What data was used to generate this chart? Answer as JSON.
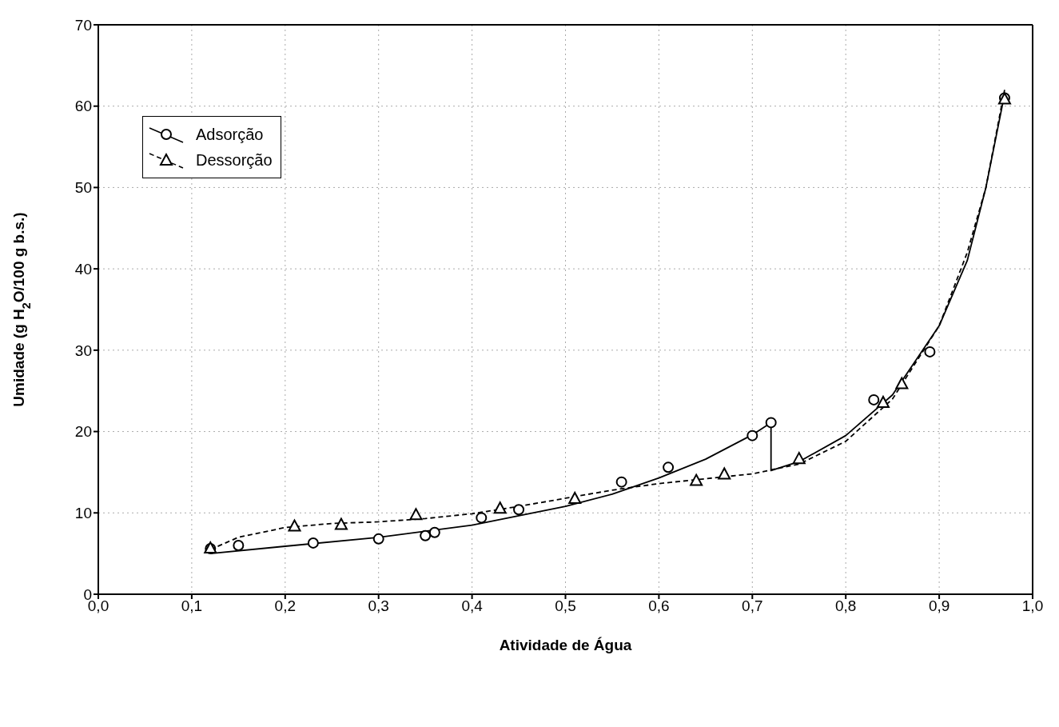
{
  "chart_data": {
    "type": "scatter",
    "xlabel": "Atividade de Água",
    "ylabel": "Umidade (g H$_{2}$O/100 g b.s.)",
    "xlim": [
      0,
      1
    ],
    "ylim": [
      0,
      70
    ],
    "xticks": [
      {
        "value": 0,
        "label": "0,0"
      },
      {
        "value": 0.1,
        "label": "0,1"
      },
      {
        "value": 0.2,
        "label": "0,2"
      },
      {
        "value": 0.3,
        "label": "0,3"
      },
      {
        "value": 0.4,
        "label": "0,4"
      },
      {
        "value": 0.5,
        "label": "0,5"
      },
      {
        "value": 0.6,
        "label": "0,6"
      },
      {
        "value": 0.7,
        "label": "0,7"
      },
      {
        "value": 0.8,
        "label": "0,8"
      },
      {
        "value": 0.9,
        "label": "0,9"
      },
      {
        "value": 1,
        "label": "1,0"
      }
    ],
    "yticks": [
      0,
      10,
      20,
      30,
      40,
      50,
      60,
      70
    ],
    "grid": true,
    "legend": "top left",
    "series": [
      {
        "name": "Adsorção",
        "marker": "circle",
        "line_style": "solid",
        "color": "#000000",
        "x": [
          0.12,
          0.15,
          0.23,
          0.3,
          0.35,
          0.36,
          0.41,
          0.45,
          0.56,
          0.61,
          0.7,
          0.72,
          0.83,
          0.89,
          0.97
        ],
        "values": [
          5.6,
          6.0,
          6.3,
          6.8,
          7.2,
          7.6,
          9.4,
          10.4,
          13.8,
          15.6,
          19.5,
          21.1,
          23.9,
          29.8,
          61.0
        ]
      },
      {
        "name": "Dessorção",
        "marker": "triangle",
        "line_style": "dashed",
        "color": "#000000",
        "x": [
          0.12,
          0.21,
          0.26,
          0.34,
          0.43,
          0.51,
          0.64,
          0.67,
          0.75,
          0.84,
          0.86,
          0.97
        ],
        "values": [
          5.7,
          8.4,
          8.6,
          9.8,
          10.6,
          11.8,
          14.0,
          14.8,
          16.7,
          23.6,
          25.9,
          60.9
        ]
      },
      {
        "type": "line",
        "line_style": "solid",
        "marker": "none",
        "color": "#000000",
        "x": [
          0.12,
          0.2,
          0.3,
          0.4,
          0.5,
          0.55,
          0.6,
          0.65,
          0.7,
          0.72,
          0.72,
          0.75,
          0.8,
          0.85,
          0.9,
          0.93,
          0.95,
          0.97
        ],
        "values": [
          5.0,
          5.9,
          7.0,
          8.5,
          10.8,
          12.3,
          14.3,
          16.6,
          19.6,
          21.1,
          15.2,
          16.3,
          19.5,
          24.5,
          33,
          41,
          50,
          61.5
        ]
      },
      {
        "type": "line",
        "line_style": "dashed",
        "marker": "none",
        "color": "#000000",
        "x": [
          0.12,
          0.15,
          0.2,
          0.25,
          0.3,
          0.35,
          0.4,
          0.45,
          0.5,
          0.55,
          0.6,
          0.65,
          0.7,
          0.75,
          0.8,
          0.85,
          0.9,
          0.93,
          0.95,
          0.97
        ],
        "values": [
          5.5,
          7.0,
          8.2,
          8.7,
          8.9,
          9.3,
          9.9,
          10.8,
          11.8,
          12.8,
          13.6,
          14.2,
          14.8,
          16.0,
          18.8,
          24.0,
          33,
          42,
          50,
          62
        ]
      }
    ]
  }
}
